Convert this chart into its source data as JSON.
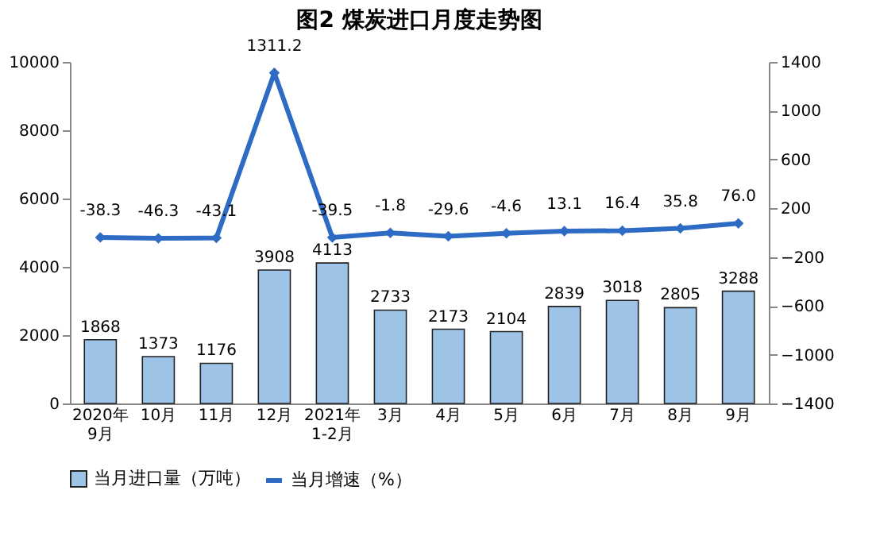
{
  "chart_data": {
    "type": "bar",
    "title": "图2 煤炭进口月度走势图",
    "categories": [
      "2020年\n9月",
      "10月",
      "11月",
      "12月",
      "2021年\n1-2月",
      "3月",
      "4月",
      "5月",
      "6月",
      "7月",
      "8月",
      "9月"
    ],
    "series": [
      {
        "name": "当月进口量（万吨）",
        "color": "#9dc3e6",
        "values": [
          1868,
          1373,
          1176,
          3908,
          4113,
          2733,
          2173,
          2104,
          2839,
          3018,
          2805,
          3288
        ],
        "value_labels": [
          "1868",
          "1373",
          "1176",
          "3908",
          "4113",
          "2733",
          "2173",
          "2104",
          "2839",
          "3018",
          "2805",
          "3288"
        ]
      },
      {
        "name": "当月增速（%）",
        "type": "line",
        "axis": "y2",
        "color": "#2e6bc4",
        "values": [
          -38.3,
          -46.3,
          -43.1,
          1311.2,
          -39.5,
          -1.8,
          -29.6,
          -4.6,
          13.1,
          16.4,
          35.8,
          76.0
        ],
        "value_labels": [
          "-38.3",
          "-46.3",
          "-43.1",
          "1311.2",
          "-39.5",
          "-1.8",
          "-29.6",
          "-4.6",
          "13.1",
          "16.4",
          "35.8",
          "76.0"
        ]
      }
    ],
    "ylim": [
      0,
      10000
    ],
    "yticks": [
      0,
      2000,
      4000,
      6000,
      8000,
      10000
    ],
    "y2lim": [
      -1400,
      1400
    ],
    "y2ticks": [
      -1400,
      -1000,
      -600,
      -200,
      200,
      600,
      1000,
      1400
    ],
    "marker": "diamond",
    "line_style": "solid",
    "grid": false,
    "legend": "bottom"
  }
}
